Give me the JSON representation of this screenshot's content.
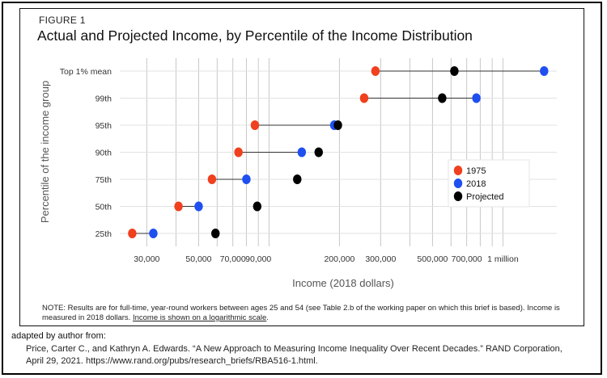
{
  "figure_label": "FIGURE 1",
  "note": {
    "text": "NOTE: Results are for full-time, year-round workers between ages 25 and 54 (see Table 2.b of the working paper on which this brief is based). Income is measured in 2018 dollars. ",
    "emphasis": "Income is shown on a logarithmic scale",
    "tail": "."
  },
  "attribution": {
    "heading": "adapted by author from:",
    "citation": "Price, Carter C., and Kathryn A. Edwards. “A New Approach to Measuring Income Inequality Over Recent Decades.” RAND Corporation, April 29, 2021. https://www.rand.org/pubs/research_briefs/RBA516-1.html."
  },
  "colors": {
    "1975": "#f0401e",
    "2018": "#1f4ff0",
    "Projected": "#000000",
    "connector": "#333333",
    "grid": "#c8c8c8"
  },
  "chart_data": {
    "type": "scatter",
    "subtype": "dumbbell",
    "title": "Actual and Projected Income, by Percentile of the Income Distribution",
    "xlabel": "Income (2018 dollars)",
    "ylabel": "Percentile of the income group",
    "x_scale": "log",
    "xlim": [
      23000,
      1700000
    ],
    "x_ticks": [
      {
        "value": 30000,
        "label": "30,000"
      },
      {
        "value": 50000,
        "label": "50,000"
      },
      {
        "value": 70000,
        "label": "70,000"
      },
      {
        "value": 90000,
        "label": "90,000"
      },
      {
        "value": 200000,
        "label": "200,000"
      },
      {
        "value": 300000,
        "label": "300,000"
      },
      {
        "value": 500000,
        "label": "500,000"
      },
      {
        "value": 700000,
        "label": "700,000"
      },
      {
        "value": 1000000,
        "label": "1 million"
      }
    ],
    "categories": [
      "25th",
      "50th",
      "75th",
      "90th",
      "95th",
      "99th",
      "Top 1% mean"
    ],
    "series": [
      {
        "name": "1975",
        "values": [
          26000,
          41000,
          57000,
          74000,
          87000,
          255000,
          285000
        ]
      },
      {
        "name": "2018",
        "values": [
          32000,
          50000,
          80000,
          138000,
          190000,
          770000,
          1500000
        ]
      },
      {
        "name": "Projected",
        "values": [
          59000,
          89000,
          132000,
          163000,
          197000,
          550000,
          620000
        ]
      }
    ],
    "grid": true,
    "legend": "right"
  }
}
